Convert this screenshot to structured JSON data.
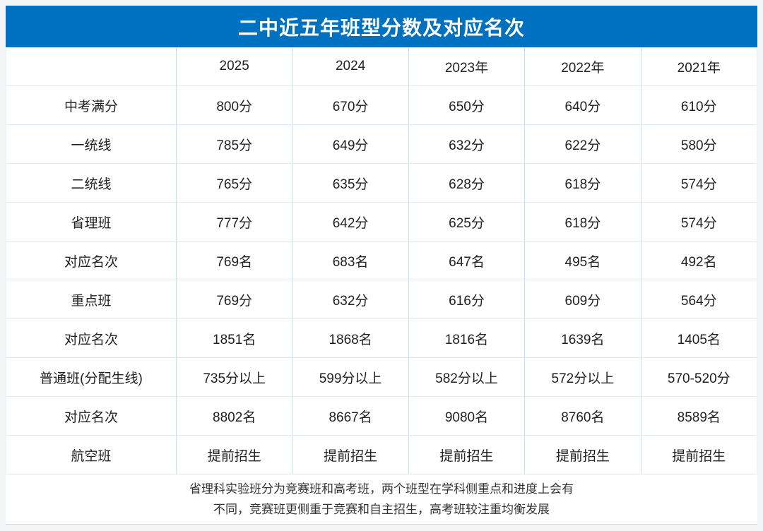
{
  "title": "二中近五年班型分数及对应名次",
  "colors": {
    "banner_blue": "#0070c0",
    "banner_text": "#ffffff",
    "grid_vertical_line": "#c8dcef",
    "grid_horizontal_line": "#dfe9f3",
    "body_text": "#222222",
    "page_background": "#f4f5f6"
  },
  "chart_data": {
    "type": "table",
    "title": "二中近五年班型分数及对应名次",
    "columns": [
      "",
      "2025",
      "2024",
      "2023年",
      "2022年",
      "2021年"
    ],
    "rows": [
      [
        "中考满分",
        "800分",
        "670分",
        "650分",
        "640分",
        "610分"
      ],
      [
        "一统线",
        "785分",
        "649分",
        "632分",
        "622分",
        "580分"
      ],
      [
        "二统线",
        "765分",
        "635分",
        "628分",
        "618分",
        "574分"
      ],
      [
        "省理班",
        "777分",
        "642分",
        "625分",
        "618分",
        "574分"
      ],
      [
        "对应名次",
        "769名",
        "683名",
        "647名",
        "495名",
        "492名"
      ],
      [
        "重点班",
        "769分",
        "632分",
        "616分",
        "609分",
        "564分"
      ],
      [
        "对应名次",
        "1851名",
        "1868名",
        "1816名",
        "1639名",
        "1405名"
      ],
      [
        "普通班(分配生线)",
        "735分以上",
        "599分以上",
        "582分以上",
        "572分以上",
        "570-520分"
      ],
      [
        "对应名次",
        "8802名",
        "8667名",
        "9080名",
        "8760名",
        "8589名"
      ],
      [
        "航空班",
        "提前招生",
        "提前招生",
        "提前招生",
        "提前招生",
        "提前招生"
      ]
    ]
  },
  "footer": {
    "lines": [
      "省理科实验班分为竞赛班和高考班，两个班型在学科侧重点和进度上会有",
      "不同，竞赛班更侧重于竞赛和自主招生，高考班较注重均衡发展"
    ]
  }
}
